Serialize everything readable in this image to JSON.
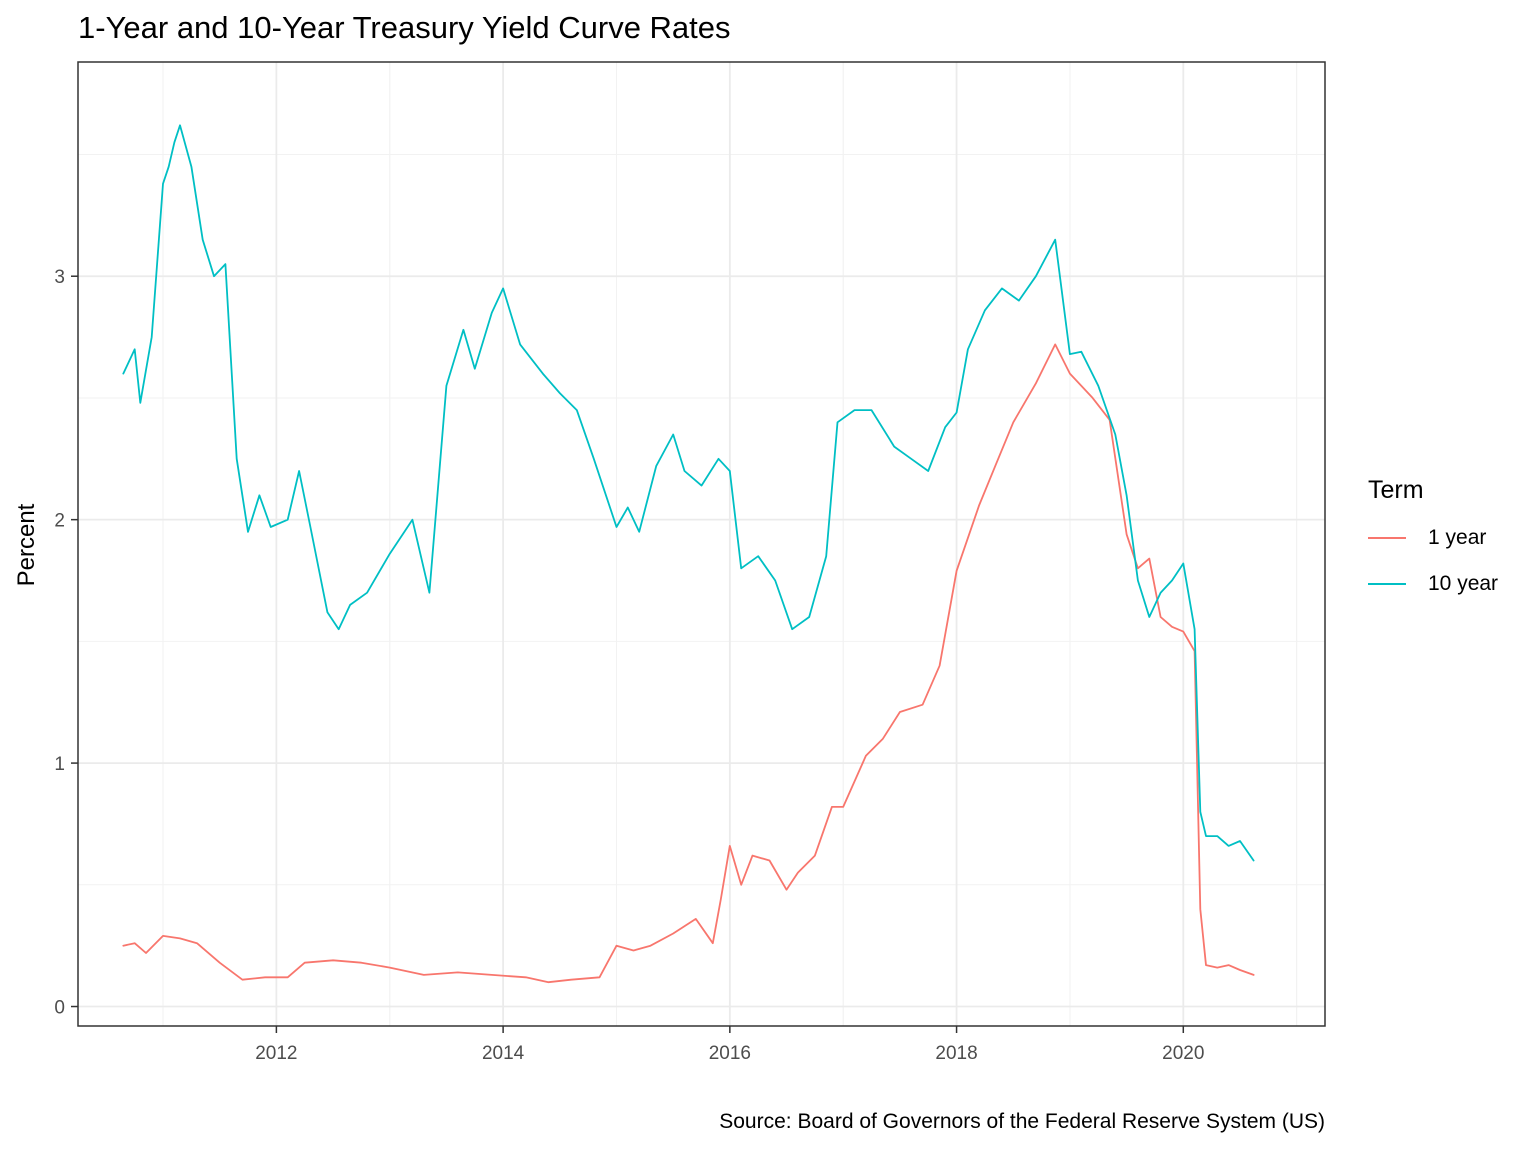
{
  "chart_data": {
    "type": "line",
    "title": "1-Year and 10-Year Treasury Yield Curve Rates",
    "caption": "Source: Board of Governors of the Federal Reserve System (US)",
    "xlabel": "",
    "ylabel": "Percent",
    "xlim": [
      2010.25,
      2021.25
    ],
    "ylim": [
      -0.08,
      3.88
    ],
    "x_ticks": [
      2012,
      2014,
      2016,
      2018,
      2020
    ],
    "x_tick_labels": [
      "2012",
      "2014",
      "2016",
      "2018",
      "2020"
    ],
    "y_ticks": [
      0,
      1,
      2,
      3
    ],
    "y_tick_labels": [
      "0",
      "1",
      "2",
      "3"
    ],
    "grid": true,
    "legend": {
      "title": "Term",
      "position": "right"
    },
    "series": [
      {
        "name": "1 year",
        "color": "#F8766D",
        "x": [
          2010.65,
          2010.75,
          2010.85,
          2011.0,
          2011.15,
          2011.3,
          2011.5,
          2011.7,
          2011.9,
          2012.1,
          2012.25,
          2012.5,
          2012.75,
          2013.0,
          2013.3,
          2013.6,
          2013.9,
          2014.2,
          2014.4,
          2014.6,
          2014.85,
          2015.0,
          2015.15,
          2015.3,
          2015.5,
          2015.7,
          2015.85,
          2015.92,
          2016.0,
          2016.1,
          2016.2,
          2016.35,
          2016.5,
          2016.6,
          2016.75,
          2016.9,
          2017.0,
          2017.2,
          2017.35,
          2017.5,
          2017.7,
          2017.85,
          2018.0,
          2018.2,
          2018.35,
          2018.5,
          2018.7,
          2018.87,
          2019.0,
          2019.2,
          2019.35,
          2019.5,
          2019.6,
          2019.7,
          2019.8,
          2019.9,
          2020.0,
          2020.1,
          2020.15,
          2020.2,
          2020.3,
          2020.4,
          2020.5,
          2020.62
        ],
        "values": [
          0.25,
          0.26,
          0.22,
          0.29,
          0.28,
          0.26,
          0.18,
          0.11,
          0.12,
          0.12,
          0.18,
          0.19,
          0.18,
          0.16,
          0.13,
          0.14,
          0.13,
          0.12,
          0.1,
          0.11,
          0.12,
          0.25,
          0.23,
          0.25,
          0.3,
          0.36,
          0.26,
          0.44,
          0.66,
          0.5,
          0.62,
          0.6,
          0.48,
          0.55,
          0.62,
          0.82,
          0.82,
          1.03,
          1.1,
          1.21,
          1.24,
          1.4,
          1.79,
          2.06,
          2.23,
          2.4,
          2.56,
          2.72,
          2.6,
          2.5,
          2.41,
          1.94,
          1.8,
          1.84,
          1.6,
          1.56,
          1.54,
          1.46,
          0.4,
          0.17,
          0.16,
          0.17,
          0.15,
          0.13
        ]
      },
      {
        "name": "10 year",
        "color": "#00BFC4",
        "x": [
          2010.65,
          2010.75,
          2010.8,
          2010.9,
          2011.0,
          2011.05,
          2011.1,
          2011.15,
          2011.25,
          2011.35,
          2011.45,
          2011.55,
          2011.65,
          2011.75,
          2011.85,
          2011.95,
          2012.1,
          2012.2,
          2012.3,
          2012.45,
          2012.55,
          2012.65,
          2012.8,
          2013.0,
          2013.2,
          2013.35,
          2013.5,
          2013.65,
          2013.75,
          2013.9,
          2014.0,
          2014.15,
          2014.35,
          2014.5,
          2014.65,
          2014.8,
          2015.0,
          2015.1,
          2015.2,
          2015.35,
          2015.5,
          2015.6,
          2015.75,
          2015.9,
          2016.0,
          2016.1,
          2016.25,
          2016.4,
          2016.55,
          2016.7,
          2016.85,
          2016.95,
          2017.1,
          2017.25,
          2017.45,
          2017.6,
          2017.75,
          2017.9,
          2018.0,
          2018.1,
          2018.25,
          2018.4,
          2018.55,
          2018.7,
          2018.87,
          2019.0,
          2019.1,
          2019.25,
          2019.4,
          2019.5,
          2019.6,
          2019.7,
          2019.8,
          2019.9,
          2020.0,
          2020.1,
          2020.15,
          2020.2,
          2020.3,
          2020.4,
          2020.5,
          2020.62
        ],
        "values": [
          2.6,
          2.7,
          2.48,
          2.75,
          3.38,
          3.45,
          3.55,
          3.62,
          3.45,
          3.15,
          3.0,
          3.05,
          2.25,
          1.95,
          2.1,
          1.97,
          2.0,
          2.2,
          1.97,
          1.62,
          1.55,
          1.65,
          1.7,
          1.86,
          2.0,
          1.7,
          2.55,
          2.78,
          2.62,
          2.85,
          2.95,
          2.72,
          2.6,
          2.52,
          2.45,
          2.25,
          1.97,
          2.05,
          1.95,
          2.22,
          2.35,
          2.2,
          2.14,
          2.25,
          2.2,
          1.8,
          1.85,
          1.75,
          1.55,
          1.6,
          1.85,
          2.4,
          2.45,
          2.45,
          2.3,
          2.25,
          2.2,
          2.38,
          2.44,
          2.7,
          2.86,
          2.95,
          2.9,
          3.0,
          3.15,
          2.68,
          2.69,
          2.55,
          2.35,
          2.1,
          1.75,
          1.6,
          1.7,
          1.75,
          1.82,
          1.55,
          0.8,
          0.7,
          0.7,
          0.66,
          0.68,
          0.6
        ]
      }
    ]
  }
}
